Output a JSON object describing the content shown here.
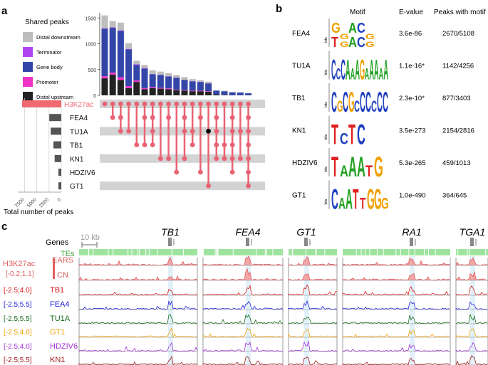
{
  "panels": {
    "a": "a",
    "b": "b",
    "c": "c"
  },
  "panel_a": {
    "legend_title": "Shared peaks",
    "legend_items": [
      {
        "label": "Distal downstream",
        "color": "#bdbdbd"
      },
      {
        "label": "Terminator",
        "color": "#b044f0"
      },
      {
        "label": "Gene body",
        "color": "#3346a8"
      },
      {
        "label": "Promoter",
        "color": "#f032c8"
      },
      {
        "label": "Distal upstream",
        "color": "#222222"
      }
    ],
    "sets": [
      {
        "name": "H3K27ac",
        "size": 8000
      },
      {
        "name": "FEA4",
        "size": 2450
      },
      {
        "name": "TU1A",
        "size": 2150
      },
      {
        "name": "TB1",
        "size": 1600
      },
      {
        "name": "KN1",
        "size": 1350
      },
      {
        "name": "HDZIV6",
        "size": 450
      },
      {
        "name": "GT1",
        "size": 350
      }
    ],
    "set_bar_axis_label": "Total number of peaks",
    "set_bar_ticks": [
      "7500",
      "5000",
      "2500",
      "0"
    ],
    "intersections": [
      {
        "sets": [
          0
        ],
        "dd": 250,
        "term": 10,
        "gene": 920,
        "prom": 40,
        "up": 330
      },
      {
        "sets": [
          0,
          1
        ],
        "dd": 120,
        "term": 10,
        "gene": 870,
        "prom": 40,
        "up": 400
      },
      {
        "sets": [
          0,
          1,
          2
        ],
        "dd": 150,
        "term": 10,
        "gene": 900,
        "prom": 50,
        "up": 300
      },
      {
        "sets": [
          0,
          2
        ],
        "dd": 110,
        "term": 10,
        "gene": 710,
        "prom": 40,
        "up": 140
      },
      {
        "sets": [
          0,
          3
        ],
        "dd": 70,
        "term": 10,
        "gene": 300,
        "prom": 30,
        "up": 260
      },
      {
        "sets": [
          0,
          1,
          3
        ],
        "dd": 60,
        "term": 10,
        "gene": 380,
        "prom": 20,
        "up": 120
      },
      {
        "sets": [
          0,
          1,
          2,
          3
        ],
        "dd": 70,
        "term": 5,
        "gene": 250,
        "prom": 20,
        "up": 140
      },
      {
        "sets": [
          0,
          4
        ],
        "dd": 60,
        "term": 5,
        "gene": 250,
        "prom": 15,
        "up": 130
      },
      {
        "sets": [
          0,
          1,
          4
        ],
        "dd": 60,
        "term": 5,
        "gene": 230,
        "prom": 15,
        "up": 120
      },
      {
        "sets": [
          0,
          5
        ],
        "dd": 50,
        "term": 5,
        "gene": 230,
        "prom": 10,
        "up": 100
      },
      {
        "sets": [
          0,
          1,
          2,
          4
        ],
        "dd": 50,
        "term": 5,
        "gene": 200,
        "prom": 10,
        "up": 90
      },
      {
        "sets": [
          0,
          2,
          3
        ],
        "dd": 40,
        "term": 5,
        "gene": 180,
        "prom": 10,
        "up": 80
      },
      {
        "sets": [
          0,
          1,
          5
        ],
        "dd": 30,
        "term": 5,
        "gene": 170,
        "prom": 10,
        "up": 80
      },
      {
        "sets": [
          0,
          6
        ],
        "dd": 30,
        "term": 5,
        "gene": 150,
        "prom": 10,
        "up": 70
      },
      {
        "sets": [
          0,
          1,
          2,
          3,
          4
        ],
        "dd": 10,
        "term": 0,
        "gene": 70,
        "prom": 0,
        "up": 20
      },
      {
        "sets": [
          0,
          3,
          4
        ],
        "dd": 10,
        "term": 0,
        "gene": 70,
        "prom": 0,
        "up": 10
      },
      {
        "sets": [
          0,
          1,
          2,
          3,
          4,
          5
        ],
        "dd": 0,
        "term": 0,
        "gene": 60,
        "prom": 0,
        "up": 0
      },
      {
        "sets": [
          0,
          2,
          4
        ],
        "dd": 0,
        "term": 0,
        "gene": 55,
        "prom": 0,
        "up": 0
      },
      {
        "sets": [
          0,
          1,
          2,
          3,
          4,
          5,
          6
        ],
        "dd": 0,
        "term": 0,
        "gene": 40,
        "prom": 0,
        "up": 0
      }
    ],
    "black_dot": {
      "set": 2,
      "column": 13
    },
    "count_ticks": [
      0,
      500,
      1000,
      1500
    ],
    "count_max": 1600
  },
  "panel_b": {
    "headers": {
      "motif": "Motif",
      "evalue": "E-value",
      "peaks": "Peaks with motif"
    },
    "bits_label": "bits",
    "rows": [
      {
        "tf": "FEA4",
        "evalue": "3.6e-86",
        "peaks": "2670/5108",
        "motif": [
          [
            "T",
            "G"
          ],
          [
            "G",
            "G"
          ],
          [
            "A",
            "A"
          ],
          [
            "C",
            "C"
          ],
          [
            "G",
            "G"
          ]
        ]
      },
      {
        "tf": "TU1A",
        "evalue": "1.1e-16*",
        "peaks": "1142/4256",
        "motif": [
          "C",
          "C",
          "C",
          "A",
          "A",
          "A",
          "G",
          "A",
          "A",
          "A",
          "A",
          "A"
        ]
      },
      {
        "tf": "TB1",
        "evalue": "2.3e-10*",
        "peaks": "877/3403",
        "motif": [
          "C",
          "G",
          "C",
          "G",
          "C",
          "C",
          "C",
          "C",
          "C",
          "C"
        ]
      },
      {
        "tf": "KN1",
        "evalue": "3.5e-273",
        "peaks": "2154/2816",
        "motif": [
          "T",
          "C",
          "T",
          "C"
        ]
      },
      {
        "tf": "HDZIV6",
        "evalue": "5.3e-265",
        "peaks": "459/1013",
        "motif": [
          "T",
          "A",
          "A",
          "A",
          "T",
          "G"
        ]
      },
      {
        "tf": "GT1",
        "evalue": "1.0e-490",
        "peaks": "364/645",
        "motif": [
          "C",
          "A",
          "A",
          "T",
          "T",
          "G",
          "G",
          "G"
        ]
      }
    ]
  },
  "panel_c": {
    "genes_label": "Genes",
    "scale_label": "10 kb",
    "tes_label": "TEs",
    "loci": [
      "TB1",
      "FEA4",
      "GT1",
      "RA1",
      "TGA1"
    ],
    "h3k27ac_label": "H3K27ac",
    "h3k27ac_range": "[-0.2;1.1]",
    "tracks": [
      {
        "label": "EARS",
        "range": "",
        "color": "#e06060",
        "fill": "#f2a6a6"
      },
      {
        "label": "CN",
        "range": "",
        "color": "#e06060",
        "fill": "#f2a6a6"
      },
      {
        "label": "TB1",
        "range": "[-2.5;4.0]",
        "color": "#d81b1b"
      },
      {
        "label": "FEA4",
        "range": "[-2.5;5.5]",
        "color": "#2222dd"
      },
      {
        "label": "TU1A",
        "range": "[-2.5;5.5]",
        "color": "#1c6e1c"
      },
      {
        "label": "GT1",
        "range": "[-2.5;4.0]",
        "color": "#f0a000"
      },
      {
        "label": "HDZIV6",
        "range": "[-2.5;4.0]",
        "color": "#a532d8"
      },
      {
        "label": "KN1",
        "range": "[-2.5;5.5]",
        "color": "#a01818"
      }
    ]
  }
}
